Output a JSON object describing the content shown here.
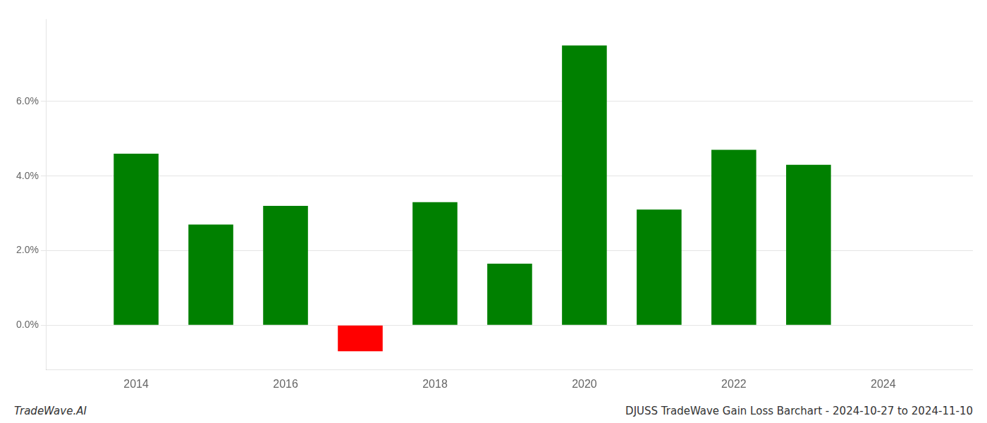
{
  "chart_data": {
    "type": "bar",
    "x": [
      2014,
      2015,
      2016,
      2017,
      2018,
      2019,
      2020,
      2021,
      2022,
      2023
    ],
    "values": [
      0.046,
      0.027,
      0.032,
      -0.007,
      0.033,
      0.0165,
      0.075,
      0.031,
      0.047,
      0.043
    ],
    "colors": [
      "#008000",
      "#008000",
      "#008000",
      "#ff0000",
      "#008000",
      "#008000",
      "#008000",
      "#008000",
      "#008000",
      "#008000"
    ],
    "xlim": [
      2012.8,
      2025.2
    ],
    "xticks": [
      2014,
      2016,
      2018,
      2020,
      2022,
      2024
    ],
    "ylim": [
      -0.012,
      0.082
    ],
    "yticks": [
      {
        "value": 0.0,
        "label": "0.0%"
      },
      {
        "value": 0.02,
        "label": "2.0%"
      },
      {
        "value": 0.04,
        "label": "4.0%"
      },
      {
        "value": 0.06,
        "label": "6.0%"
      }
    ],
    "grid": "y",
    "annotations": [
      "TradeWave.AI",
      "DJUSS TradeWave Gain Loss Barchart - 2024-10-27 to 2024-11-10"
    ]
  }
}
